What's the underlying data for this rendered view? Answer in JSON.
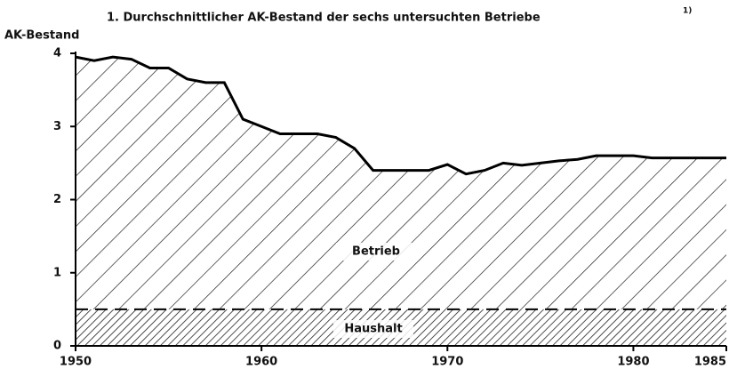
{
  "chart_data": {
    "type": "stacked-area",
    "title": "1. Durchschnittlicher AK-Bestand der sechs untersuchten Betriebe",
    "title_note": "1)",
    "ylabel": "AK-Bestand",
    "x": [
      1950,
      1951,
      1952,
      1953,
      1954,
      1955,
      1956,
      1957,
      1958,
      1959,
      1960,
      1961,
      1962,
      1963,
      1964,
      1965,
      1966,
      1967,
      1968,
      1969,
      1970,
      1971,
      1972,
      1973,
      1974,
      1975,
      1976,
      1977,
      1978,
      1979,
      1980,
      1981,
      1982,
      1983,
      1984,
      1985
    ],
    "series": [
      {
        "name": "Haushalt",
        "color": "#000000",
        "values": [
          0.5,
          0.5,
          0.5,
          0.5,
          0.5,
          0.5,
          0.5,
          0.5,
          0.5,
          0.5,
          0.5,
          0.5,
          0.5,
          0.5,
          0.5,
          0.5,
          0.5,
          0.5,
          0.5,
          0.5,
          0.5,
          0.5,
          0.5,
          0.5,
          0.5,
          0.5,
          0.5,
          0.5,
          0.5,
          0.5,
          0.5,
          0.5,
          0.5,
          0.5,
          0.5,
          0.5
        ]
      },
      {
        "name": "Betrieb",
        "color": "#000000",
        "values": [
          3.45,
          3.4,
          3.45,
          3.42,
          3.3,
          3.3,
          3.15,
          3.1,
          3.1,
          2.6,
          2.5,
          2.4,
          2.4,
          2.4,
          2.35,
          2.2,
          1.9,
          1.9,
          1.9,
          1.9,
          1.98,
          1.85,
          1.9,
          2.0,
          1.97,
          2.0,
          2.03,
          2.05,
          2.1,
          2.1,
          2.1,
          2.07,
          2.07,
          2.07,
          2.07,
          2.07
        ]
      }
    ],
    "xlim": [
      1950,
      1985
    ],
    "xticks": [
      1950,
      1960,
      1970,
      1980,
      1985
    ],
    "ylim": [
      0,
      4
    ],
    "yticks": [
      0,
      1,
      2,
      3,
      4
    ]
  }
}
